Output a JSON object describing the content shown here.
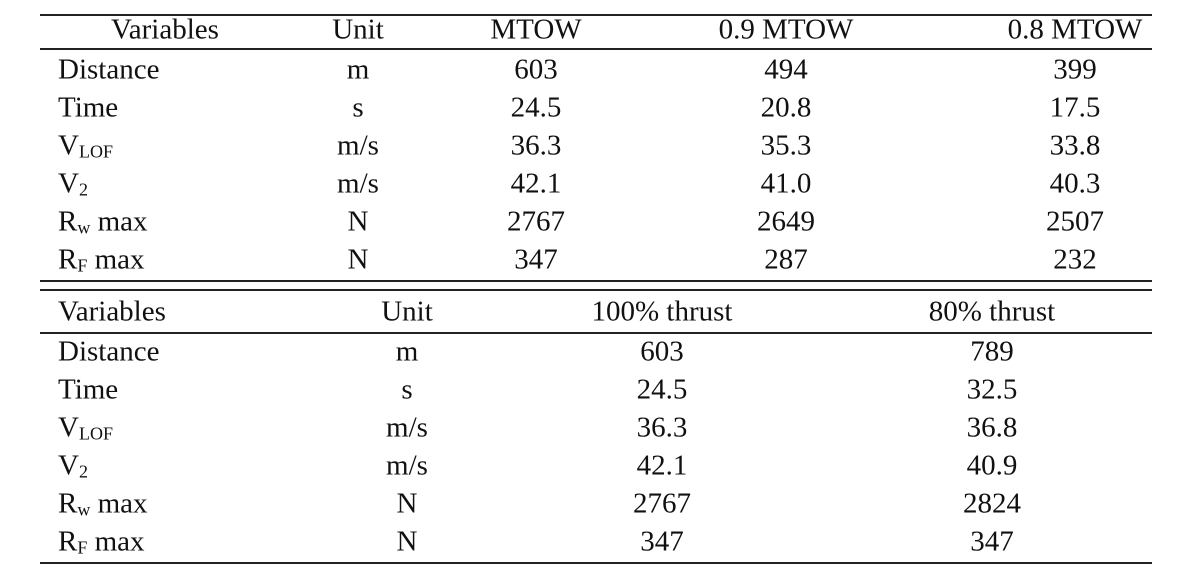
{
  "table1": {
    "header": [
      "Variables",
      "Unit",
      "MTOW",
      "0.9 MTOW",
      "0.8 MTOW"
    ],
    "rows": [
      [
        "Distance",
        "m",
        "603",
        "494",
        "399"
      ],
      [
        "Time",
        "s",
        "24.5",
        "20.8",
        "17.5"
      ],
      [
        {
          "main": "V",
          "sub": "LOF"
        },
        "m/s",
        "36.3",
        "35.3",
        "33.8"
      ],
      [
        {
          "main": "V",
          "sub": "2"
        },
        "m/s",
        "42.1",
        "41.0",
        "40.3"
      ],
      [
        {
          "main": "R",
          "sub": "w",
          "after": " max"
        },
        "N",
        "2767",
        "2649",
        "2507"
      ],
      [
        {
          "main": "R",
          "sub": "F",
          "after": " max"
        },
        "N",
        "347",
        "287",
        "232"
      ]
    ]
  },
  "table2": {
    "header": [
      "Variables",
      "Unit",
      "100% thrust",
      "80% thrust"
    ],
    "rows": [
      [
        "Distance",
        "m",
        "603",
        "789"
      ],
      [
        "Time",
        "s",
        "24.5",
        "32.5"
      ],
      [
        {
          "main": "V",
          "sub": "LOF"
        },
        "m/s",
        "36.3",
        "36.8"
      ],
      [
        {
          "main": "V",
          "sub": "2"
        },
        "m/s",
        "42.1",
        "40.9"
      ],
      [
        {
          "main": "R",
          "sub": "w",
          "after": " max"
        },
        "N",
        "2767",
        "2824"
      ],
      [
        {
          "main": "R",
          "sub": "F",
          "after": " max"
        },
        "N",
        "347",
        "347"
      ]
    ]
  }
}
